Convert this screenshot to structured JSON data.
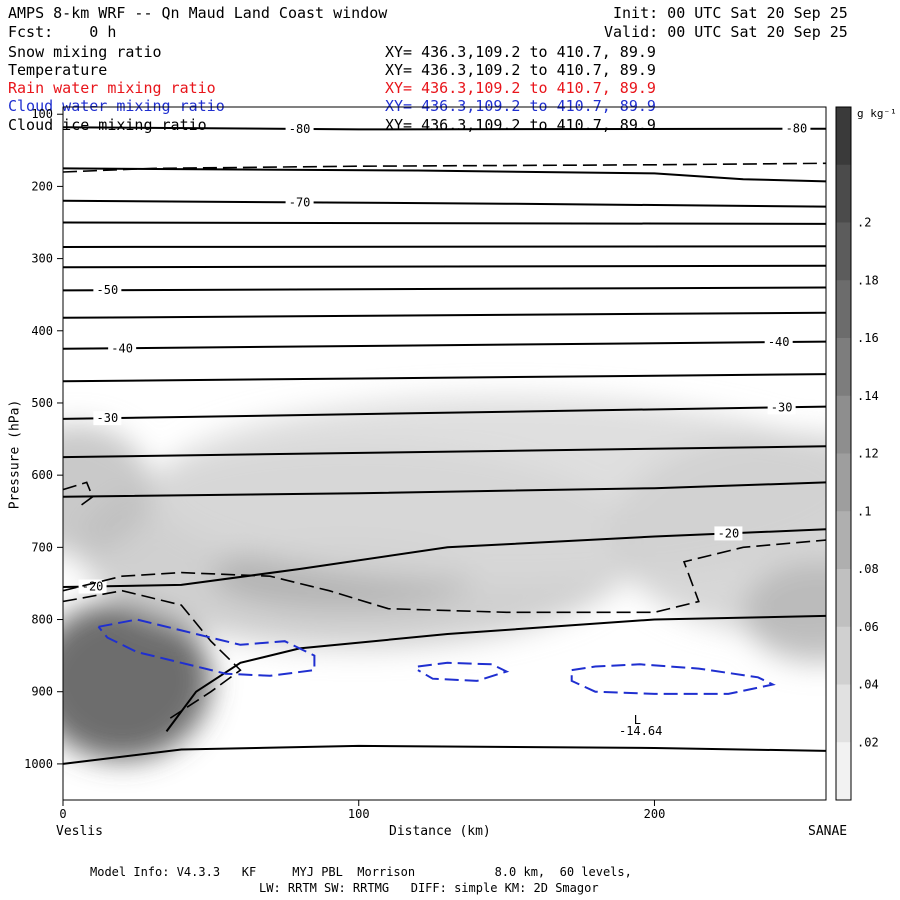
{
  "header": {
    "title": "AMPS 8-km WRF -- Qn Maud Land Coast window",
    "fcst": "Fcst:    0 h",
    "init": "Init: 00 UTC Sat 20 Sep 25",
    "valid": "Valid: 00 UTC Sat 20 Sep 25"
  },
  "legend": [
    {
      "name": "Snow mixing ratio",
      "xy": "XY= 436.3,109.2 to 410.7, 89.9",
      "color": "#000000"
    },
    {
      "name": "Temperature",
      "xy": "XY= 436.3,109.2 to 410.7, 89.9",
      "color": "#000000"
    },
    {
      "name": "Rain water mixing ratio",
      "xy": "XY= 436.3,109.2 to 410.7, 89.9",
      "color": "#e8151b"
    },
    {
      "name": "Cloud water mixing ratio",
      "xy": "XY= 436.3,109.2 to 410.7, 89.9",
      "color": "#1f2fd0"
    },
    {
      "name": "Cloud ice mixing ratio",
      "xy": "XY= 436.3,109.2 to 410.7, 89.9",
      "color": "#000000"
    }
  ],
  "footer": {
    "line1": "Model Info: V4.3.3   KF     MYJ PBL  Morrison           8.0 km,  60 levels,",
    "line2": "LW: RRTM SW: RRTMG   DIFF: simple KM: 2D Smagor"
  },
  "chart_data": {
    "type": "cross-section contour",
    "ylabel": "Pressure (hPa)",
    "xlabel": "Distance (km)",
    "x_start_label": "Veslis",
    "x_end_label": "SANAE",
    "xlim": [
      0,
      258
    ],
    "ylim": [
      1050,
      90
    ],
    "x_ticks": [
      0,
      100,
      200
    ],
    "y_ticks": [
      100,
      200,
      300,
      400,
      500,
      600,
      700,
      800,
      900,
      1000
    ],
    "colorbar": {
      "unit": "g kg⁻¹",
      "ticks": [
        ".02",
        ".04",
        ".06",
        ".08",
        ".1",
        ".12",
        ".14",
        ".16",
        ".18",
        ".2"
      ],
      "min": 0,
      "max": 0.24
    },
    "snow_shading": [
      {
        "cx": 20,
        "cy": 885,
        "rx": 30,
        "ry": 110,
        "value": 0.2
      },
      {
        "cx": 100,
        "cy": 700,
        "rx": 95,
        "ry": 140,
        "value": 0.06
      },
      {
        "cx": 95,
        "cy": 740,
        "rx": 45,
        "ry": 45,
        "value": 0.09
      },
      {
        "cx": 150,
        "cy": 620,
        "rx": 120,
        "ry": 130,
        "value": 0.04
      },
      {
        "cx": 245,
        "cy": 680,
        "rx": 60,
        "ry": 140,
        "value": 0.05
      },
      {
        "cx": 255,
        "cy": 790,
        "rx": 25,
        "ry": 70,
        "value": 0.08
      },
      {
        "cx": 5,
        "cy": 620,
        "rx": 25,
        "ry": 90,
        "value": 0.07
      }
    ],
    "temperature_contours": [
      {
        "points": [
          [
            0,
            118
          ],
          [
            100,
            121
          ],
          [
            258,
            120
          ]
        ],
        "label": "-80",
        "label_x": [
          80,
          248
        ]
      },
      {
        "points": [
          [
            0,
            175
          ],
          [
            120,
            178
          ],
          [
            200,
            182
          ],
          [
            230,
            190
          ],
          [
            258,
            193
          ]
        ]
      },
      {
        "points": [
          [
            0,
            220
          ],
          [
            150,
            224
          ],
          [
            258,
            228
          ]
        ],
        "label": "-70",
        "label_x": [
          80
        ]
      },
      {
        "points": [
          [
            0,
            250
          ],
          [
            258,
            252
          ]
        ]
      },
      {
        "points": [
          [
            0,
            284
          ],
          [
            258,
            283
          ]
        ]
      },
      {
        "points": [
          [
            0,
            312
          ],
          [
            258,
            310
          ]
        ]
      },
      {
        "points": [
          [
            0,
            344
          ],
          [
            258,
            340
          ]
        ],
        "label": "-50",
        "label_x": [
          15
        ]
      },
      {
        "points": [
          [
            0,
            382
          ],
          [
            258,
            375
          ]
        ]
      },
      {
        "points": [
          [
            0,
            425
          ],
          [
            258,
            415
          ]
        ],
        "label": "-40",
        "label_x": [
          20,
          242
        ]
      },
      {
        "points": [
          [
            0,
            470
          ],
          [
            258,
            460
          ]
        ]
      },
      {
        "points": [
          [
            0,
            522
          ],
          [
            258,
            505
          ]
        ],
        "label": "-30",
        "label_x": [
          15,
          243
        ]
      },
      {
        "points": [
          [
            0,
            575
          ],
          [
            258,
            560
          ]
        ]
      },
      {
        "points": [
          [
            0,
            630
          ],
          [
            100,
            625
          ],
          [
            200,
            618
          ],
          [
            258,
            610
          ]
        ]
      },
      {
        "points": [
          [
            0,
            755
          ],
          [
            40,
            752
          ],
          [
            80,
            730
          ],
          [
            130,
            700
          ],
          [
            200,
            685
          ],
          [
            258,
            675
          ]
        ],
        "label": "-20",
        "label_x": [
          10,
          225
        ]
      },
      {
        "points": [
          [
            35,
            955
          ],
          [
            45,
            900
          ],
          [
            60,
            860
          ],
          [
            80,
            840
          ],
          [
            130,
            820
          ],
          [
            200,
            800
          ],
          [
            258,
            795
          ]
        ]
      },
      {
        "points": [
          [
            0,
            1000
          ],
          [
            40,
            980
          ],
          [
            100,
            975
          ],
          [
            200,
            978
          ],
          [
            258,
            982
          ]
        ]
      }
    ],
    "ice_contours": [
      {
        "points": [
          [
            0,
            180
          ],
          [
            30,
            175
          ],
          [
            100,
            172
          ],
          [
            200,
            170
          ],
          [
            258,
            168
          ]
        ]
      },
      {
        "points": [
          [
            0,
            760
          ],
          [
            20,
            740
          ],
          [
            40,
            735
          ],
          [
            70,
            740
          ],
          [
            90,
            760
          ],
          [
            110,
            785
          ],
          [
            150,
            790
          ],
          [
            200,
            790
          ],
          [
            215,
            775
          ],
          [
            210,
            720
          ],
          [
            230,
            700
          ],
          [
            258,
            690
          ]
        ]
      },
      {
        "points": [
          [
            0,
            775
          ],
          [
            20,
            760
          ],
          [
            30,
            770
          ],
          [
            40,
            780
          ],
          [
            50,
            830
          ],
          [
            60,
            870
          ],
          [
            50,
            900
          ],
          [
            35,
            940
          ]
        ]
      },
      {
        "points": [
          [
            0,
            620
          ],
          [
            8,
            610
          ],
          [
            10,
            630
          ],
          [
            5,
            645
          ]
        ]
      }
    ],
    "cloud_water_contours": [
      {
        "points": [
          [
            12,
            810
          ],
          [
            25,
            800
          ],
          [
            40,
            815
          ],
          [
            60,
            835
          ],
          [
            75,
            830
          ],
          [
            85,
            850
          ],
          [
            85,
            870
          ],
          [
            70,
            878
          ],
          [
            55,
            875
          ],
          [
            40,
            860
          ],
          [
            25,
            845
          ],
          [
            15,
            825
          ],
          [
            12,
            810
          ]
        ]
      },
      {
        "points": [
          [
            120,
            865
          ],
          [
            130,
            860
          ],
          [
            145,
            862
          ],
          [
            150,
            872
          ],
          [
            140,
            885
          ],
          [
            125,
            882
          ],
          [
            120,
            870
          ]
        ]
      },
      {
        "points": [
          [
            172,
            870
          ],
          [
            180,
            865
          ],
          [
            195,
            862
          ],
          [
            215,
            868
          ],
          [
            235,
            880
          ],
          [
            240,
            890
          ],
          [
            225,
            903
          ],
          [
            200,
            903
          ],
          [
            180,
            900
          ],
          [
            172,
            885
          ],
          [
            172,
            870
          ]
        ]
      }
    ],
    "annotations": [
      {
        "text": "L",
        "x": 193,
        "y": 945
      },
      {
        "text": "-14.64",
        "x": 188,
        "y": 960
      }
    ]
  }
}
